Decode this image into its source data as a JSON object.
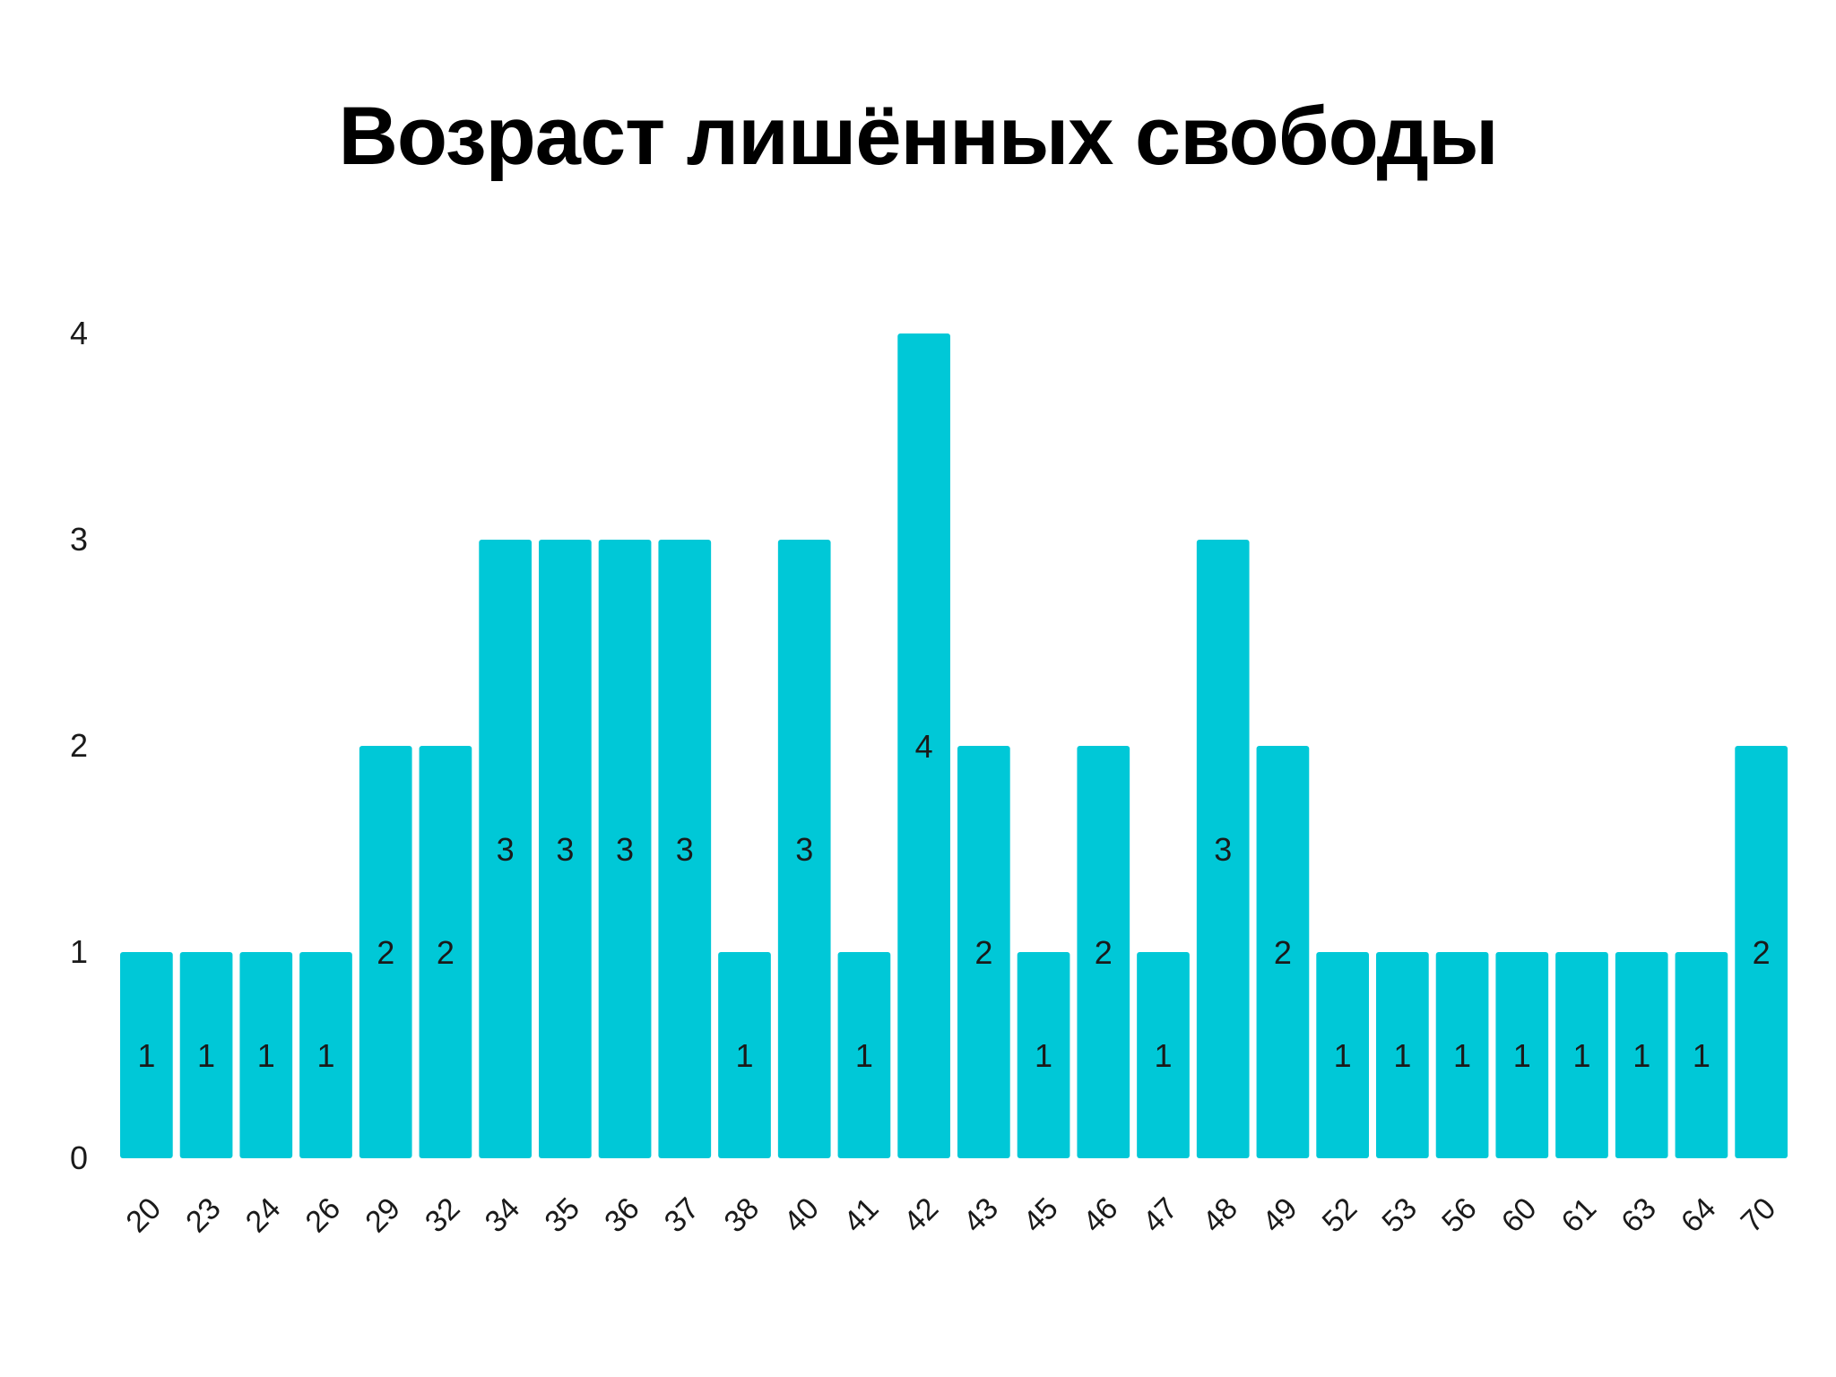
{
  "chart_data": {
    "type": "bar",
    "title": "Возраст лишённых свободы",
    "xlabel": "",
    "ylabel": "",
    "categories": [
      "20",
      "23",
      "24",
      "26",
      "29",
      "32",
      "34",
      "35",
      "36",
      "37",
      "38",
      "40",
      "41",
      "42",
      "43",
      "45",
      "46",
      "47",
      "48",
      "49",
      "52",
      "53",
      "56",
      "60",
      "61",
      "63",
      "64",
      "70"
    ],
    "values": [
      1,
      1,
      1,
      1,
      2,
      2,
      3,
      3,
      3,
      3,
      1,
      3,
      1,
      4,
      2,
      1,
      2,
      1,
      3,
      2,
      1,
      1,
      1,
      1,
      1,
      1,
      1,
      2
    ],
    "ylim": [
      0,
      4
    ],
    "yticks": [
      0,
      1,
      2,
      3,
      4
    ],
    "grid": false,
    "legend": "none",
    "data_labels": true,
    "bar_color": "#00c8d7"
  }
}
